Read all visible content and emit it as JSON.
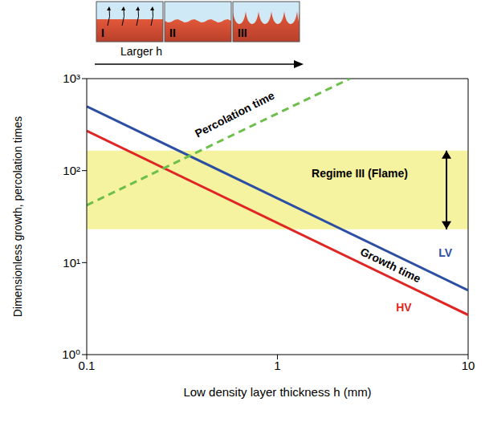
{
  "chart_data": {
    "type": "line",
    "x_label": "Low density layer thickness h (mm)",
    "y_label": "Dimensionless growth, percolation times",
    "log": true,
    "xlim": [
      0.1,
      10
    ],
    "xticks": [
      0.1,
      1,
      10
    ],
    "ylim": [
      1,
      1000
    ],
    "yticks": [
      {
        "value": 1,
        "label": "10⁰"
      },
      {
        "value": 10,
        "label": "10¹"
      },
      {
        "value": 100,
        "label": "10²"
      },
      {
        "value": 1000,
        "label": "10³"
      }
    ],
    "series": [
      {
        "name": "LV",
        "color": "#2d4fa3",
        "line_style": "solid",
        "x": [
          0.1,
          10
        ],
        "values": [
          500,
          5
        ]
      },
      {
        "name": "HV",
        "color": "#e02525",
        "line_style": "solid",
        "x": [
          0.1,
          10
        ],
        "values": [
          270,
          2.7
        ]
      },
      {
        "name": "Percolation time",
        "color": "#6cbf4a",
        "line_style": "dashed",
        "x": [
          0.1,
          2.4
        ],
        "values": [
          42,
          1000
        ]
      }
    ],
    "bands": [
      {
        "y": [
          23,
          165
        ],
        "color": "#f6f3a0"
      }
    ],
    "annotations": [
      {
        "text": "Growth time"
      },
      {
        "text": "Regime III (Flame)"
      }
    ]
  },
  "diagram": {
    "panels": [
      "I",
      "II",
      "III"
    ],
    "arrow_label": "Larger h"
  }
}
